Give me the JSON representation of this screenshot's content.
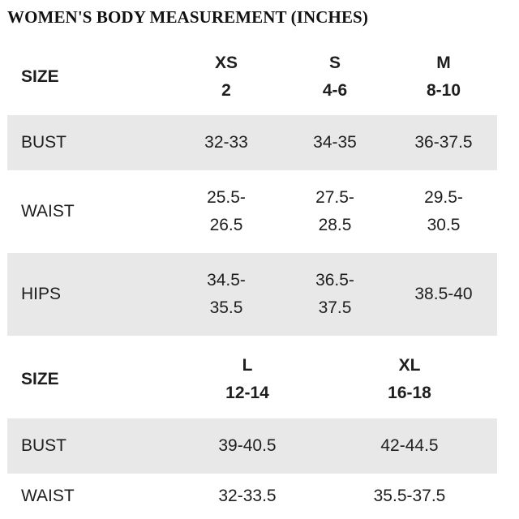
{
  "title": "WOMEN'S BODY MEASUREMENT (INCHES)",
  "table1": {
    "size_label": "SIZE",
    "columns": [
      {
        "letter": "XS",
        "number": "2"
      },
      {
        "letter": "S",
        "number": "4-6"
      },
      {
        "letter": "M",
        "number": "8-10"
      }
    ],
    "rows": [
      {
        "label": "BUST",
        "values": [
          [
            "32-33"
          ],
          [
            "34-35"
          ],
          [
            "36-37.5"
          ]
        ]
      },
      {
        "label": "WAIST",
        "values": [
          [
            "25.5-",
            "26.5"
          ],
          [
            "27.5-",
            "28.5"
          ],
          [
            "29.5-",
            "30.5"
          ]
        ]
      },
      {
        "label": "HIPS",
        "values": [
          [
            "34.5-",
            "35.5"
          ],
          [
            "36.5-",
            "37.5"
          ],
          [
            "38.5-40"
          ]
        ]
      }
    ]
  },
  "table2": {
    "size_label": "SIZE",
    "columns": [
      {
        "letter": "L",
        "number": "12-14"
      },
      {
        "letter": "XL",
        "number": "16-18"
      }
    ],
    "rows": [
      {
        "label": "BUST",
        "values": [
          "39-40.5",
          "42-44.5"
        ]
      },
      {
        "label": "WAIST",
        "values": [
          "32-33.5",
          "35.5-37.5"
        ]
      }
    ]
  }
}
